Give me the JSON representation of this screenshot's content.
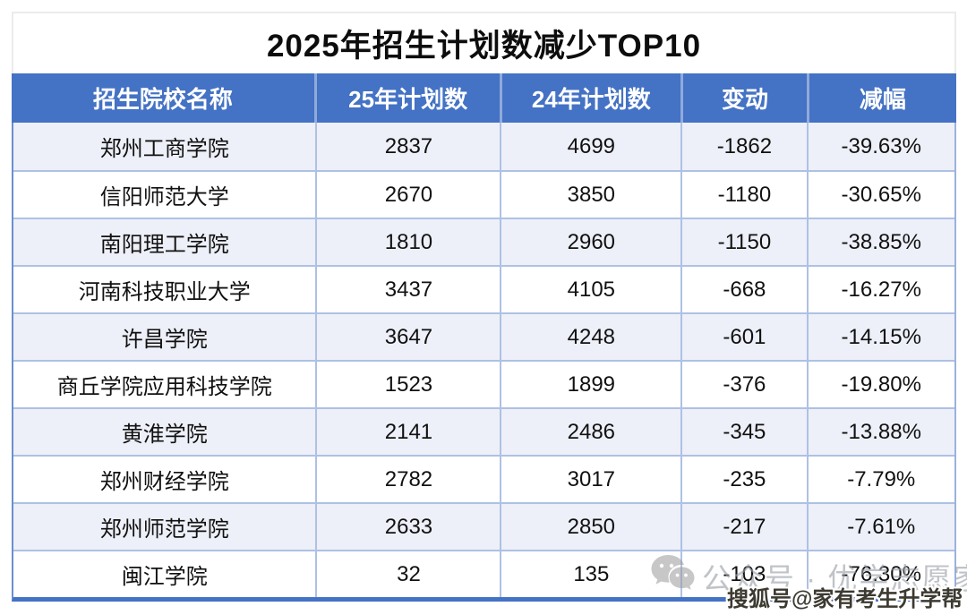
{
  "title": "2025年招生计划数减少TOP10",
  "table": {
    "columns": [
      "招生院校名称",
      "25年计划数",
      "24年计划数",
      "变动",
      "减幅"
    ],
    "column_keys": [
      "school",
      "plan25",
      "plan24",
      "change",
      "pct"
    ],
    "rows": [
      {
        "school": "郑州工商学院",
        "plan25": "2837",
        "plan24": "4699",
        "change": "-1862",
        "pct": "-39.63%"
      },
      {
        "school": "信阳师范大学",
        "plan25": "2670",
        "plan24": "3850",
        "change": "-1180",
        "pct": "-30.65%"
      },
      {
        "school": "南阳理工学院",
        "plan25": "1810",
        "plan24": "2960",
        "change": "-1150",
        "pct": "-38.85%"
      },
      {
        "school": "河南科技职业大学",
        "plan25": "3437",
        "plan24": "4105",
        "change": "-668",
        "pct": "-16.27%"
      },
      {
        "school": "许昌学院",
        "plan25": "3647",
        "plan24": "4248",
        "change": "-601",
        "pct": "-14.15%"
      },
      {
        "school": "商丘学院应用科技学院",
        "plan25": "1523",
        "plan24": "1899",
        "change": "-376",
        "pct": "-19.80%"
      },
      {
        "school": "黄淮学院",
        "plan25": "2141",
        "plan24": "2486",
        "change": "-345",
        "pct": "-13.88%"
      },
      {
        "school": "郑州财经学院",
        "plan25": "2782",
        "plan24": "3017",
        "change": "-235",
        "pct": "-7.79%"
      },
      {
        "school": "郑州师范学院",
        "plan25": "2633",
        "plan24": "2850",
        "change": "-217",
        "pct": "-7.61%"
      },
      {
        "school": "闽江学院",
        "plan25": "32",
        "plan24": "135",
        "change": "-103",
        "pct": "-76.30%"
      }
    ]
  },
  "watermarks": {
    "wechat_icon": "wechat-bubbles-icon",
    "wechat_label": "公众号 · 优学志愿家",
    "sohu_label": "搜狐号@家有考生升学帮"
  },
  "colors": {
    "header_bg": "#4472c4",
    "header_text": "#ffffff",
    "row_alt_bg": "#edf0f8",
    "row_bg": "#ffffff",
    "grid_line": "#aec1e5",
    "bottom_border": "#4472c4",
    "watermark_gray": "#9aa0a8"
  }
}
